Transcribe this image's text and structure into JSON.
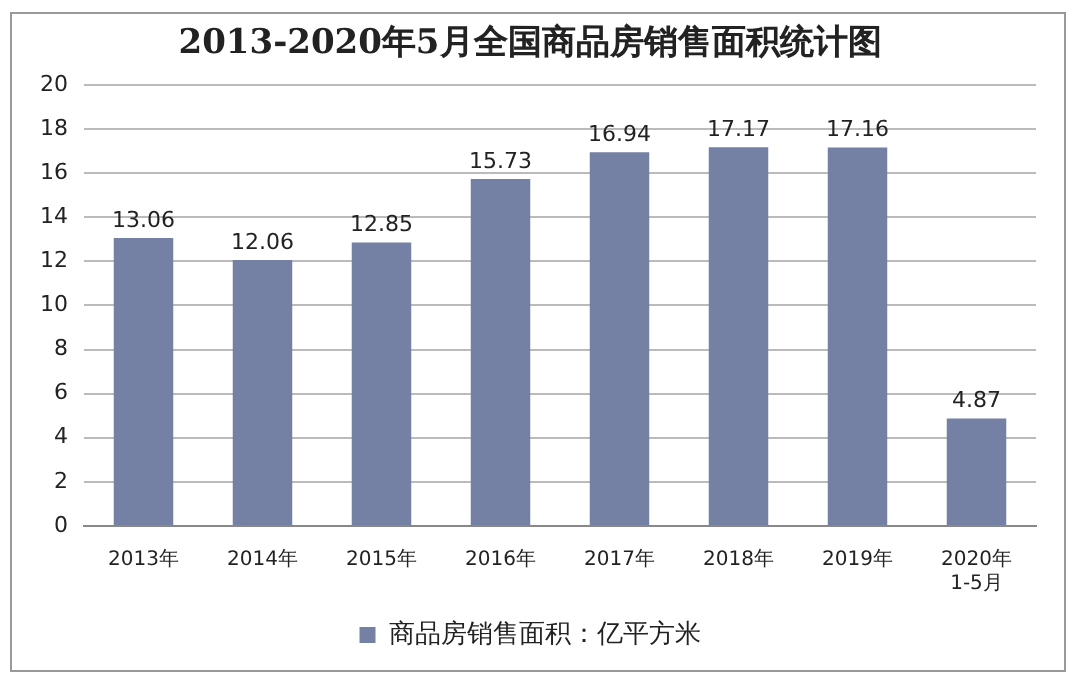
{
  "chart_data": {
    "type": "bar",
    "title": "2013-2020年5月全国商品房销售面积统计图",
    "categories": [
      "2013年",
      "2014年",
      "2015年",
      "2016年",
      "2017年",
      "2018年",
      "2019年",
      "2020年 1-5月"
    ],
    "series": [
      {
        "name": "商品房销售面积：亿平方米",
        "color": "#7480a4",
        "values": [
          13.06,
          12.06,
          12.85,
          15.73,
          16.94,
          17.17,
          17.16,
          4.87
        ]
      }
    ],
    "ylim": [
      0,
      20
    ],
    "yticks": [
      0,
      2,
      4,
      6,
      8,
      10,
      12,
      14,
      16,
      18,
      20
    ],
    "grid": "y",
    "legend": "bottom",
    "data_labels": true
  }
}
